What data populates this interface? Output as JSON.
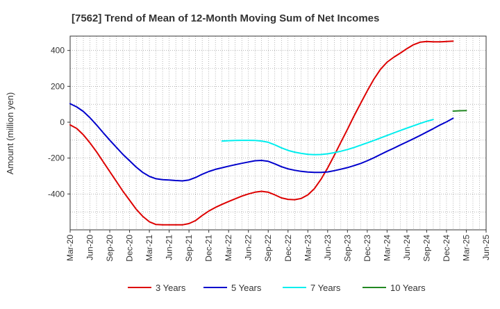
{
  "chart_data": {
    "type": "line",
    "title": "[7562]  Trend of Mean of 12-Month Moving Sum of Net Incomes",
    "ylabel": "Amount (million yen)",
    "xlabel": "",
    "x_tick_labels": [
      "Mar-20",
      "Jun-20",
      "Sep-20",
      "Dec-20",
      "Mar-21",
      "Jun-21",
      "Sep-21",
      "Dec-21",
      "Mar-22",
      "Jun-22",
      "Sep-22",
      "Dec-22",
      "Mar-23",
      "Jun-23",
      "Sep-23",
      "Dec-23",
      "Mar-24",
      "Jun-24",
      "Sep-24",
      "Dec-24",
      "Mar-25",
      "Jun-25"
    ],
    "y_ticks": [
      -400,
      -200,
      0,
      200,
      400
    ],
    "ylim": [
      -600,
      480
    ],
    "grid": true,
    "legend_position": "bottom",
    "series": [
      {
        "name": "3 Years",
        "color": "#dd0000",
        "start_month": "Mar-20",
        "values": [
          -15,
          -35,
          -70,
          -115,
          -165,
          -220,
          -275,
          -330,
          -385,
          -435,
          -485,
          -525,
          -555,
          -570,
          -572,
          -572,
          -572,
          -572,
          -565,
          -548,
          -520,
          -495,
          -475,
          -458,
          -442,
          -427,
          -412,
          -400,
          -390,
          -385,
          -390,
          -405,
          -422,
          -430,
          -432,
          -425,
          -405,
          -370,
          -318,
          -255,
          -185,
          -112,
          -40,
          35,
          105,
          175,
          240,
          295,
          335,
          362,
          385,
          410,
          432,
          446,
          450,
          448,
          448,
          450,
          452
        ]
      },
      {
        "name": "5 Years",
        "color": "#0000cc",
        "start_month": "Mar-20",
        "values": [
          103,
          85,
          60,
          25,
          -15,
          -58,
          -100,
          -140,
          -180,
          -215,
          -250,
          -280,
          -302,
          -315,
          -320,
          -322,
          -325,
          -327,
          -322,
          -308,
          -290,
          -275,
          -263,
          -254,
          -245,
          -237,
          -229,
          -222,
          -215,
          -213,
          -218,
          -232,
          -248,
          -260,
          -268,
          -274,
          -278,
          -280,
          -280,
          -277,
          -270,
          -262,
          -253,
          -242,
          -230,
          -215,
          -198,
          -180,
          -162,
          -145,
          -127,
          -110,
          -92,
          -74,
          -55,
          -36,
          -16,
          2,
          22
        ]
      },
      {
        "name": "7 Years",
        "color": "#00eeee",
        "start_month": "Feb-22",
        "values": [
          -105,
          -103,
          -102,
          -101,
          -101,
          -102,
          -105,
          -112,
          -126,
          -143,
          -157,
          -167,
          -174,
          -179,
          -181,
          -180,
          -176,
          -170,
          -162,
          -152,
          -141,
          -128,
          -115,
          -102,
          -88,
          -74,
          -60,
          -46,
          -33,
          -20,
          -7,
          5,
          15
        ]
      },
      {
        "name": "10 Years",
        "color": "#228822",
        "start_month": "Jan-25",
        "values": [
          62,
          64,
          65
        ]
      }
    ]
  }
}
